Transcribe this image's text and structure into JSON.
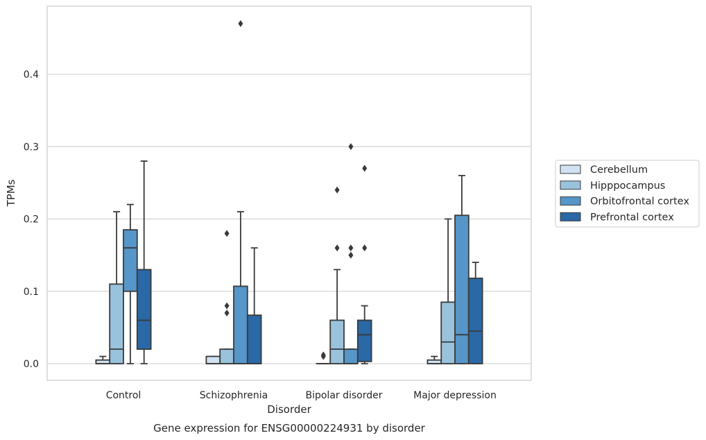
{
  "chart_data": {
    "type": "box",
    "title": "Gene expression for ENSG00000224931 by disorder",
    "xlabel": "Disorder",
    "ylabel": "TPMs",
    "ylim": [
      -0.023,
      0.495
    ],
    "yticks": [
      0.0,
      0.1,
      0.2,
      0.3,
      0.4
    ],
    "ytick_labels": [
      "0.0",
      "0.1",
      "0.2",
      "0.3",
      "0.4"
    ],
    "grid": "horizontal",
    "legend_position": "right",
    "categories": [
      "Control",
      "Schizophrenia",
      "Bipolar disorder",
      "Major depression"
    ],
    "series": [
      {
        "name": "Cerebellum",
        "color": "#d0e2f2",
        "boxes": [
          {
            "whislo": 0.0,
            "q1": 0.0,
            "med": 0.0,
            "q3": 0.005,
            "whishi": 0.01,
            "fliers": []
          },
          {
            "whislo": 0.0,
            "q1": 0.0,
            "med": 0.0,
            "q3": 0.01,
            "whishi": 0.01,
            "fliers": []
          },
          {
            "whislo": 0.0,
            "q1": 0.0,
            "med": 0.0,
            "q3": 0.0,
            "whishi": 0.0,
            "fliers": [
              0.01,
              0.012
            ]
          },
          {
            "whislo": 0.0,
            "q1": 0.0,
            "med": 0.0,
            "q3": 0.005,
            "whishi": 0.01,
            "fliers": []
          }
        ]
      },
      {
        "name": "Hipppocampus",
        "color": "#99c2dd",
        "boxes": [
          {
            "whislo": 0.0,
            "q1": 0.0,
            "med": 0.02,
            "q3": 0.11,
            "whishi": 0.21,
            "fliers": []
          },
          {
            "whislo": 0.0,
            "q1": 0.0,
            "med": 0.0,
            "q3": 0.02,
            "whishi": 0.02,
            "fliers": [
              0.07,
              0.08,
              0.18
            ]
          },
          {
            "whislo": 0.0,
            "q1": 0.0,
            "med": 0.02,
            "q3": 0.06,
            "whishi": 0.13,
            "fliers": [
              0.16,
              0.24
            ]
          },
          {
            "whislo": 0.0,
            "q1": 0.0,
            "med": 0.03,
            "q3": 0.085,
            "whishi": 0.2,
            "fliers": []
          }
        ]
      },
      {
        "name": "Orbitofrontal cortex",
        "color": "#5696c8",
        "boxes": [
          {
            "whislo": 0.0,
            "q1": 0.1,
            "med": 0.16,
            "q3": 0.185,
            "whishi": 0.22,
            "fliers": []
          },
          {
            "whislo": 0.0,
            "q1": 0.0,
            "med": 0.0,
            "q3": 0.107,
            "whishi": 0.21,
            "fliers": [
              0.47
            ]
          },
          {
            "whislo": 0.0,
            "q1": 0.0,
            "med": 0.0,
            "q3": 0.02,
            "whishi": 0.02,
            "fliers": [
              0.15,
              0.16,
              0.3
            ]
          },
          {
            "whislo": 0.0,
            "q1": 0.0,
            "med": 0.04,
            "q3": 0.205,
            "whishi": 0.26,
            "fliers": []
          }
        ]
      },
      {
        "name": "Prefrontal cortex",
        "color": "#2a68a6",
        "boxes": [
          {
            "whislo": 0.0,
            "q1": 0.02,
            "med": 0.06,
            "q3": 0.13,
            "whishi": 0.28,
            "fliers": []
          },
          {
            "whislo": 0.0,
            "q1": 0.0,
            "med": 0.0,
            "q3": 0.067,
            "whishi": 0.16,
            "fliers": []
          },
          {
            "whislo": 0.0,
            "q1": 0.003,
            "med": 0.04,
            "q3": 0.06,
            "whishi": 0.08,
            "fliers": [
              0.16,
              0.27
            ]
          },
          {
            "whislo": 0.0,
            "q1": 0.0,
            "med": 0.045,
            "q3": 0.118,
            "whishi": 0.14,
            "fliers": []
          }
        ]
      }
    ]
  }
}
